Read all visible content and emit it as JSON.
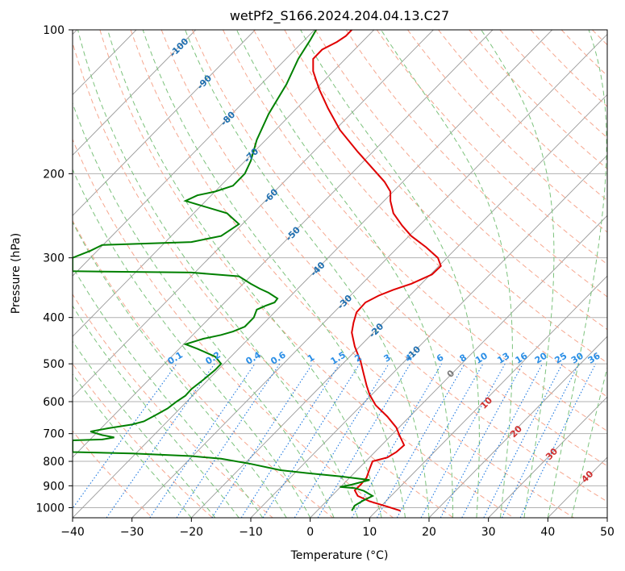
{
  "chart_data": {
    "type": "line",
    "title": "wetPf2_S166.2024.204.04.13.C27",
    "xlabel": "Temperature (°C)",
    "ylabel": "Pressure (hPa)",
    "xlim": [
      -40,
      50
    ],
    "ylim": [
      1050,
      100
    ],
    "y_scale": "log",
    "x_ticks": [
      -40,
      -30,
      -20,
      -10,
      0,
      10,
      20,
      30,
      40,
      50
    ],
    "y_ticks": [
      100,
      200,
      300,
      400,
      500,
      600,
      700,
      800,
      900,
      1000
    ],
    "grid": true,
    "series": [
      {
        "color": "#e00000",
        "points": [
          [
            15.2,
            1015
          ],
          [
            13,
            995
          ],
          [
            10,
            970
          ],
          [
            8,
            945
          ],
          [
            7.5,
            920
          ],
          [
            8.5,
            895
          ],
          [
            9.5,
            865
          ],
          [
            10,
            830
          ],
          [
            10.5,
            800
          ],
          [
            13,
            785
          ],
          [
            14.5,
            765
          ],
          [
            15.8,
            740
          ],
          [
            15,
            705
          ],
          [
            14.5,
            680
          ],
          [
            13,
            645
          ],
          [
            11,
            610
          ],
          [
            10,
            580
          ],
          [
            9.5,
            555
          ],
          [
            9,
            525
          ],
          [
            8.5,
            495
          ],
          [
            7.5,
            460
          ],
          [
            7,
            430
          ],
          [
            7.3,
            410
          ],
          [
            7.8,
            390
          ],
          [
            9.3,
            372
          ],
          [
            11.5,
            360
          ],
          [
            14,
            350
          ],
          [
            17,
            340
          ],
          [
            20.5,
            325
          ],
          [
            22,
            312
          ],
          [
            21.5,
            300
          ],
          [
            19.5,
            285
          ],
          [
            17,
            270
          ],
          [
            15.5,
            257
          ],
          [
            14,
            242
          ],
          [
            13.5,
            228
          ],
          [
            13.5,
            218
          ],
          [
            12.5,
            208
          ],
          [
            10.5,
            195
          ],
          [
            8,
            180
          ],
          [
            5,
            162
          ],
          [
            3,
            146
          ],
          [
            1.5,
            133
          ],
          [
            0.5,
            122
          ],
          [
            0.5,
            115
          ],
          [
            2,
            110
          ],
          [
            4.5,
            106
          ],
          [
            6,
            103
          ],
          [
            7,
            100
          ]
        ]
      },
      {
        "color": "#008000",
        "points": [
          [
            7,
            1015
          ],
          [
            7.5,
            990
          ],
          [
            9,
            965
          ],
          [
            10.5,
            945
          ],
          [
            9,
            922
          ],
          [
            7.5,
            910
          ],
          [
            5,
            905
          ],
          [
            7,
            895
          ],
          [
            10,
            875
          ],
          [
            5,
            860
          ],
          [
            0,
            848
          ],
          [
            -5,
            835
          ],
          [
            -10,
            810
          ],
          [
            -15,
            790
          ],
          [
            -20,
            780
          ],
          [
            -30,
            770
          ],
          [
            -40,
            765
          ],
          [
            -40,
            723
          ],
          [
            -35,
            720
          ],
          [
            -33,
            713
          ],
          [
            -35,
            705
          ],
          [
            -37,
            693
          ],
          [
            -34,
            682
          ],
          [
            -30,
            670
          ],
          [
            -28,
            660
          ],
          [
            -26,
            640
          ],
          [
            -24,
            620
          ],
          [
            -22.5,
            600
          ],
          [
            -21,
            583
          ],
          [
            -20,
            565
          ],
          [
            -18,
            540
          ],
          [
            -16,
            515
          ],
          [
            -15,
            500
          ],
          [
            -16,
            483
          ],
          [
            -19,
            465
          ],
          [
            -21,
            455
          ],
          [
            -18,
            443
          ],
          [
            -15,
            435
          ],
          [
            -13,
            428
          ],
          [
            -11,
            418
          ],
          [
            -9.5,
            400
          ],
          [
            -9,
            385
          ],
          [
            -7.5,
            378
          ],
          [
            -6,
            372
          ],
          [
            -5.5,
            365
          ],
          [
            -7,
            355
          ],
          [
            -8.5,
            348
          ],
          [
            -10,
            340
          ],
          [
            -12,
            328
          ],
          [
            -20,
            322
          ],
          [
            -40,
            320
          ],
          [
            -40,
            300
          ],
          [
            -37,
            290
          ],
          [
            -35,
            282
          ],
          [
            -20,
            278
          ],
          [
            -15,
            270
          ],
          [
            -12,
            255
          ],
          [
            -14,
            242
          ],
          [
            -18,
            234
          ],
          [
            -21,
            228
          ],
          [
            -19,
            222
          ],
          [
            -16,
            218
          ],
          [
            -13,
            212
          ],
          [
            -11,
            200
          ],
          [
            -10,
            188
          ],
          [
            -9,
            170
          ],
          [
            -7,
            150
          ],
          [
            -4,
            130
          ],
          [
            -2,
            115
          ],
          [
            0,
            105
          ],
          [
            1,
            100
          ]
        ]
      }
    ],
    "isotherm_labels": [
      "-100",
      "-90",
      "-80",
      "-70",
      "-60",
      "-50",
      "-40",
      "-30",
      "-20",
      "-10"
    ],
    "mixing_ratio_labels": [
      "0.1",
      "0.2",
      "0.4",
      "0.6",
      "1",
      "1.5",
      "2",
      "3",
      "4",
      "6",
      "8",
      "10",
      "13",
      "16",
      "20",
      "25",
      "30",
      "36"
    ],
    "moist_adiabat_labels": [
      "0",
      "10",
      "20",
      "30",
      "40"
    ],
    "colors": {
      "temperature": "#e00000",
      "dewpoint": "#008000",
      "isotherm": "#9a9a9a",
      "dry_adiabat": "#f6a78f",
      "moist_adiabat": "#7cc27c",
      "mixing_ratio": "#1e78e0",
      "grid": "#b0b0b0"
    }
  }
}
